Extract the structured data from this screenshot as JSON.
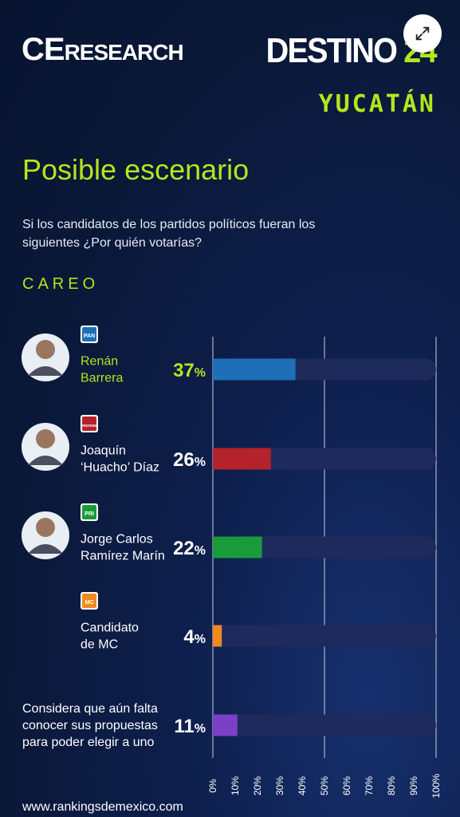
{
  "header": {
    "brand_left_main": "CE",
    "brand_left_sub": "RESEARCH",
    "brand_right_word": "DESTINO",
    "brand_right_num": "24",
    "region": "YUCATÁN"
  },
  "title": "Posible escenario",
  "question": "Si los candidatos de los partidos políticos fueran los siguientes ¿Por quién votarías?",
  "section": "CAREO",
  "footer": "www.rankingsdemexico.com",
  "chart_data": {
    "type": "bar",
    "orientation": "horizontal",
    "categories": [
      {
        "lines": [
          "Renán",
          "Barrera"
        ],
        "party": "PAN",
        "party_color": "#1e6fb8",
        "photo": true
      },
      {
        "lines": [
          "Joaquín",
          "‘Huacho’ Díaz"
        ],
        "party": "morena",
        "party_color": "#b5222b",
        "photo": true
      },
      {
        "lines": [
          "Jorge Carlos",
          "Ramírez Marín"
        ],
        "party": "PRI",
        "party_color": "#1a9b3b",
        "photo": true
      },
      {
        "lines": [
          "Candidato",
          "de MC"
        ],
        "party": "MC",
        "party_color": "#f08a1c",
        "photo": false
      },
      {
        "lines": [
          "Considera que aún falta",
          "conocer sus propuestas",
          "para poder elegir a uno"
        ],
        "party": "",
        "party_color": "#7b3fc8",
        "photo": false
      }
    ],
    "values": [
      37,
      26,
      22,
      4,
      11
    ],
    "value_labels": [
      "37",
      "26",
      "22",
      "4",
      "11"
    ],
    "value_suffix": "%",
    "xlim": [
      0,
      100
    ],
    "ticks": [
      "0%",
      "10%",
      "20%",
      "30%",
      "40%",
      "50%",
      "60%",
      "70%",
      "80%",
      "90%",
      "100%"
    ],
    "gridlines_at": [
      0,
      50,
      100
    ],
    "highlight_value_color": "#b5e61d",
    "value_color": "#ffffff",
    "track_color": "#1f2a5c"
  }
}
